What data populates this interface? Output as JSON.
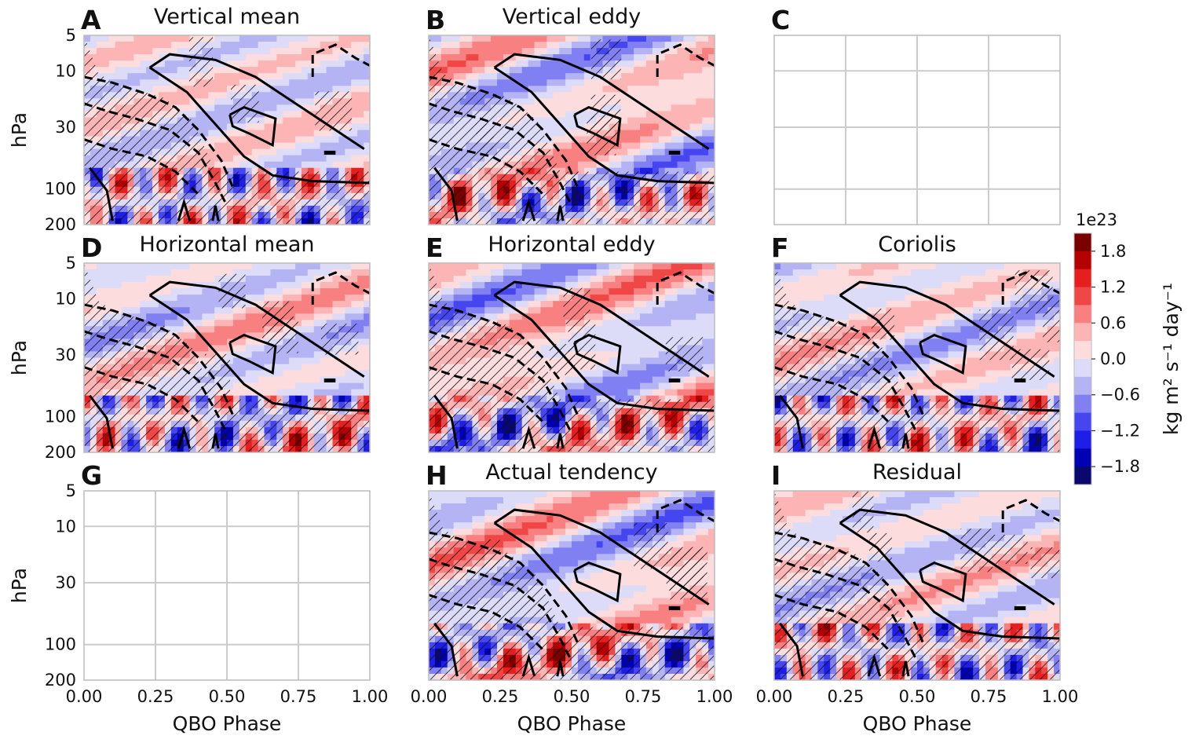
{
  "chart_data": {
    "type": "heatmap",
    "colorbar": {
      "multiplier": "1e23",
      "label": "kg m² s⁻¹ day⁻¹",
      "ticks": [
        "1.8",
        "1.2",
        "0.6",
        "0.0",
        "−0.6",
        "−1.2",
        "−1.8"
      ],
      "range": [
        -2.1,
        2.1
      ],
      "colors": [
        "#08086e",
        "#0000b4",
        "#1e1ee6",
        "#4646f0",
        "#8080f2",
        "#b4b4f4",
        "#dcdcf8",
        "#fcdcdc",
        "#fcb4b4",
        "#f88080",
        "#f04646",
        "#e61e1e",
        "#b40000",
        "#7a0000"
      ]
    },
    "x_axis": {
      "label": "QBO Phase",
      "ticks": [
        "0.00",
        "0.25",
        "0.50",
        "0.75",
        "1.00"
      ],
      "range": [
        0,
        1
      ]
    },
    "y_axis": {
      "label": "hPa",
      "scale": "log",
      "ticks": [
        "5",
        "10",
        "30",
        "100",
        "200"
      ],
      "range": [
        5,
        200
      ]
    },
    "panels": [
      {
        "letter": "A",
        "title": "Vertical mean",
        "empty": false,
        "seed": 3
      },
      {
        "letter": "B",
        "title": "Vertical eddy",
        "empty": false,
        "seed": 7
      },
      {
        "letter": "C",
        "title": "",
        "empty": true,
        "seed": 0
      },
      {
        "letter": "D",
        "title": "Horizontal mean",
        "empty": false,
        "seed": 11
      },
      {
        "letter": "E",
        "title": "Horizontal eddy",
        "empty": false,
        "seed": 13
      },
      {
        "letter": "F",
        "title": "Coriolis",
        "empty": false,
        "seed": 17
      },
      {
        "letter": "G",
        "title": "",
        "empty": true,
        "seed": 0
      },
      {
        "letter": "H",
        "title": "Actual tendency",
        "empty": false,
        "seed": 19
      },
      {
        "letter": "I",
        "title": "Residual",
        "empty": false,
        "seed": 23
      }
    ]
  }
}
